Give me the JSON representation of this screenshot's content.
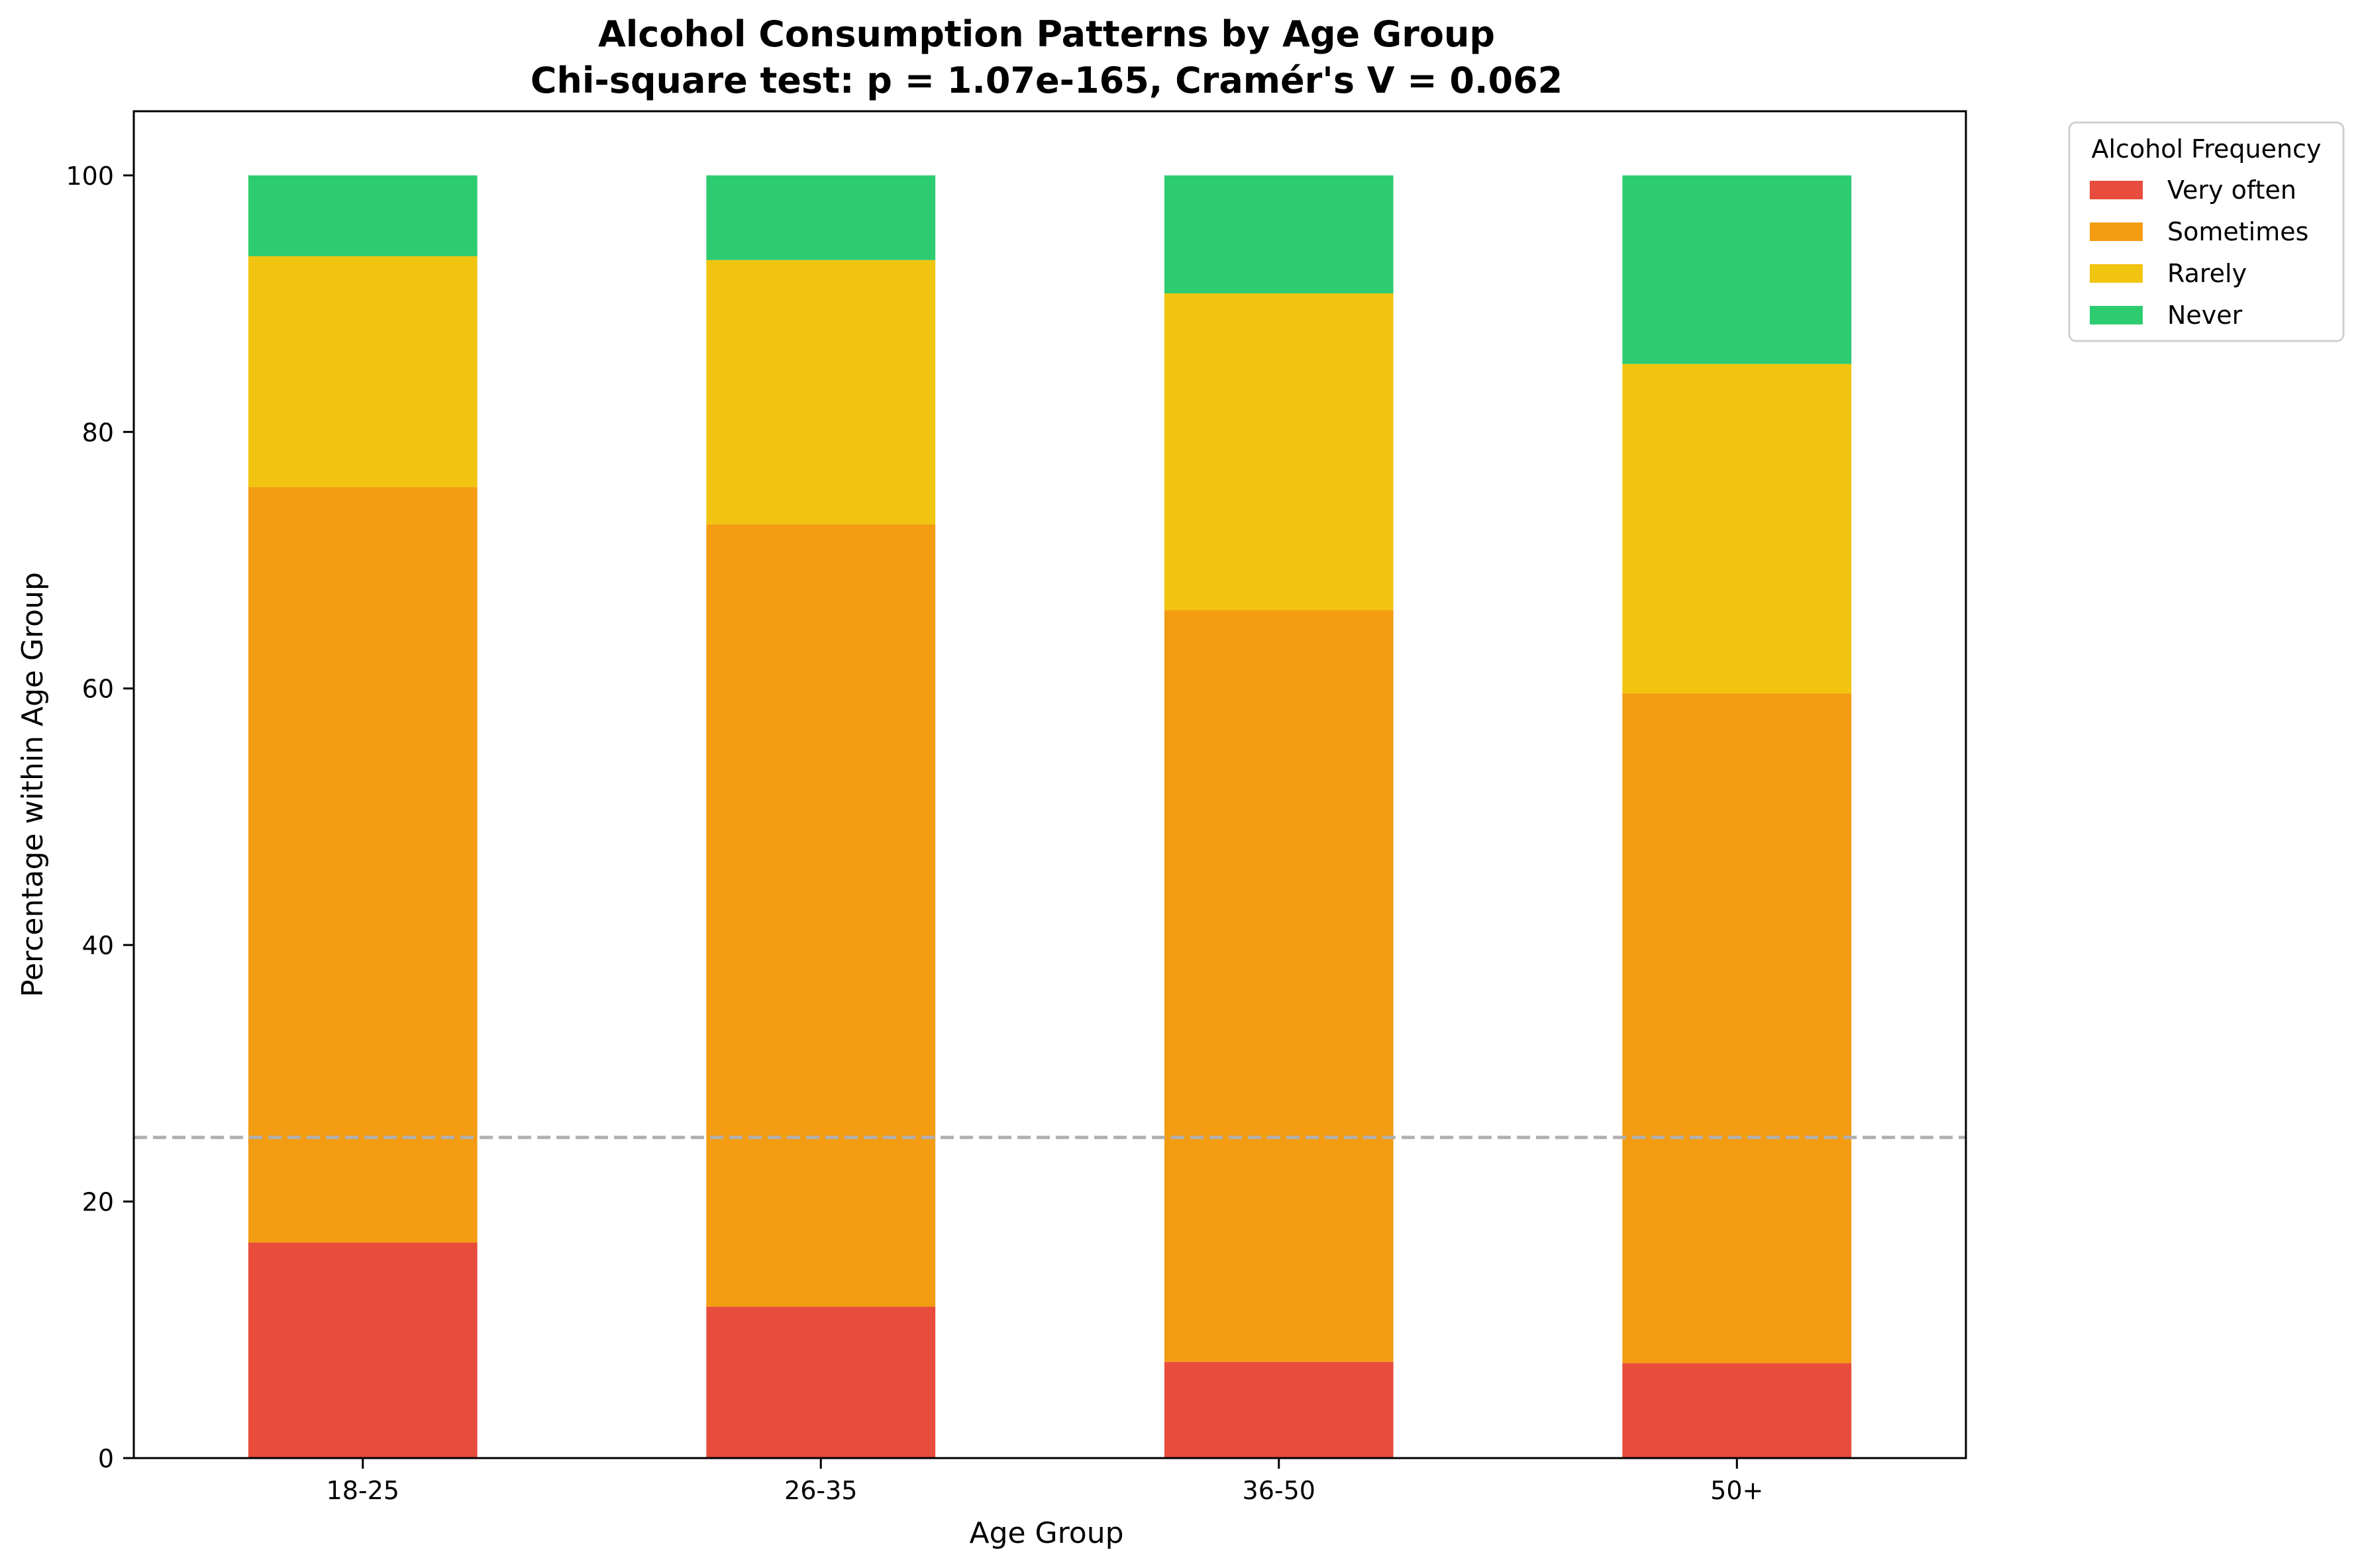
{
  "chart_data": {
    "type": "bar",
    "stacked": true,
    "title_line1": "Alcohol Consumption Patterns by Age Group",
    "title_line2": "Chi-square test: p = 1.07e-165, Cramér's V = 0.062",
    "xlabel": "Age Group",
    "ylabel": "Percentage within Age Group",
    "categories": [
      "18-25",
      "26-35",
      "36-50",
      "50+"
    ],
    "ylim": [
      0,
      105
    ],
    "yticks": [
      0,
      20,
      40,
      60,
      80,
      100
    ],
    "reference_line": {
      "y": 25,
      "style": "dashed",
      "color": "#b0b0b0"
    },
    "legend": {
      "title": "Alcohol Frequency",
      "placement": "outside-top-right"
    },
    "grid": false,
    "series": [
      {
        "name": "Very often",
        "color": "#e74c3c",
        "values": [
          16.8,
          11.8,
          7.5,
          7.4
        ]
      },
      {
        "name": "Sometimes",
        "color": "#f39c12",
        "values": [
          58.9,
          61.0,
          58.6,
          52.2
        ]
      },
      {
        "name": "Rarely",
        "color": "#f1c40f",
        "values": [
          18.0,
          20.6,
          24.7,
          25.7
        ]
      },
      {
        "name": "Never",
        "color": "#2ecc71",
        "values": [
          6.3,
          6.6,
          9.2,
          14.7
        ]
      }
    ]
  }
}
